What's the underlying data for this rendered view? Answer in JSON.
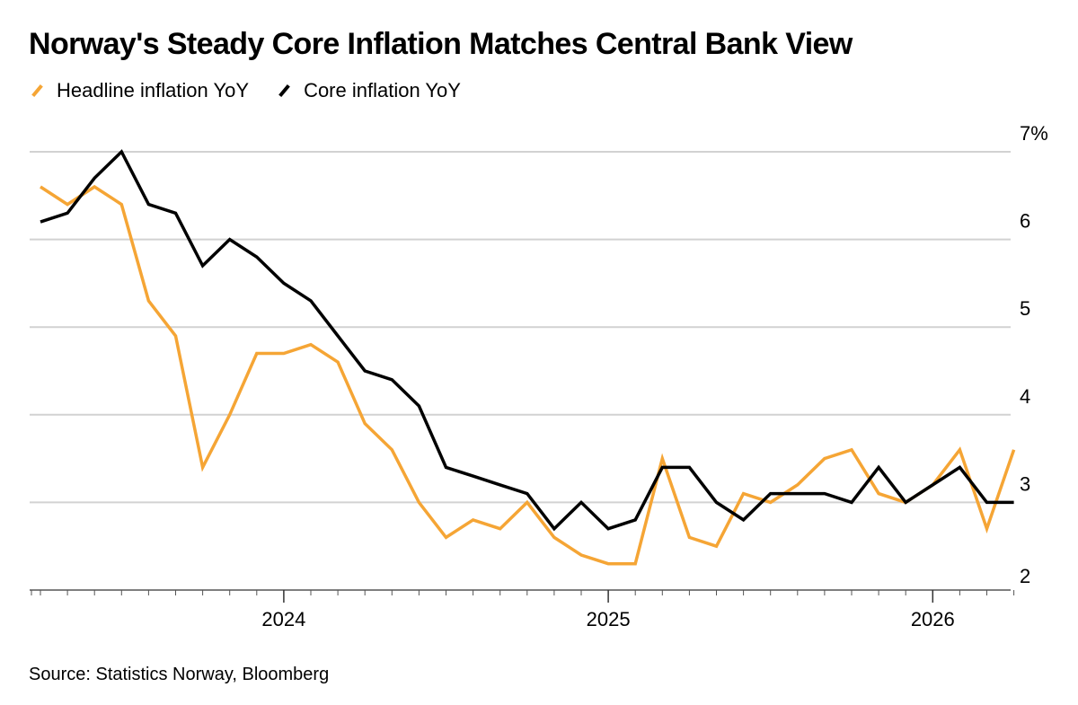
{
  "title": "Norway's Steady Core Inflation Matches Central Bank View",
  "source": "Source: Statistics Norway, Bloomberg",
  "chart_data": {
    "type": "line",
    "title": "Norway's Steady Core Inflation Matches Central Bank View",
    "xlabel": "",
    "ylabel": "",
    "x": [
      "2023-04",
      "2023-05",
      "2023-06",
      "2023-07",
      "2023-08",
      "2023-09",
      "2023-10",
      "2023-11",
      "2023-12",
      "2024-01",
      "2024-02",
      "2024-03",
      "2024-04",
      "2024-05",
      "2024-06",
      "2024-07",
      "2024-08",
      "2024-09",
      "2024-10",
      "2024-11",
      "2024-12",
      "2025-01",
      "2025-02",
      "2025-03",
      "2025-04",
      "2025-05",
      "2025-06",
      "2025-07",
      "2025-08",
      "2025-09",
      "2025-10",
      "2025-11",
      "2025-12",
      "2026-01",
      "2026-02",
      "2026-03",
      "2026-04"
    ],
    "series": [
      {
        "name": "Headline inflation YoY",
        "color": "#f5a535",
        "values": [
          6.6,
          6.4,
          6.6,
          6.4,
          5.3,
          4.9,
          3.4,
          4.0,
          4.7,
          4.7,
          4.8,
          4.6,
          3.9,
          3.6,
          3.0,
          2.6,
          2.8,
          2.7,
          3.0,
          2.6,
          2.4,
          2.3,
          2.3,
          3.5,
          2.6,
          2.5,
          3.1,
          3.0,
          3.2,
          3.5,
          3.6,
          3.1,
          3.0,
          3.2,
          3.6,
          2.7,
          3.6
        ]
      },
      {
        "name": "Core inflation YoY",
        "color": "#000000",
        "values": [
          6.2,
          6.3,
          6.7,
          7.0,
          6.4,
          6.3,
          5.7,
          6.0,
          5.8,
          5.5,
          5.3,
          4.9,
          4.5,
          4.4,
          4.1,
          3.4,
          3.3,
          3.2,
          3.1,
          2.7,
          3.0,
          2.7,
          2.8,
          3.4,
          3.4,
          3.0,
          2.8,
          3.1,
          3.1,
          3.1,
          3.0,
          3.4,
          3.0,
          3.2,
          3.4,
          3.0,
          3.0
        ]
      }
    ],
    "ylim": [
      2,
      7
    ],
    "yticks": [
      2,
      3,
      4,
      5,
      6,
      7
    ],
    "ytick_labels": [
      "2",
      "3",
      "4",
      "5",
      "6",
      "7%"
    ],
    "xtick_labels": [
      {
        "label": "2024",
        "date": "2024-01"
      },
      {
        "label": "2025",
        "date": "2025-01"
      },
      {
        "label": "2026",
        "date": "2026-01"
      }
    ],
    "grid": true,
    "legend": "top-left",
    "gridColor": "#d2d2d2"
  }
}
